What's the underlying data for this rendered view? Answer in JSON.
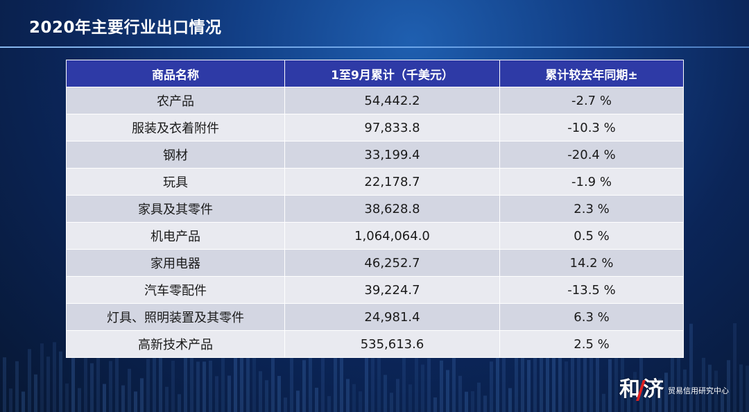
{
  "title": "2020年主要行业出口情况",
  "table": {
    "headers": [
      "商品名称",
      "1至9月累计（千美元）",
      "累计较去年同期±"
    ],
    "rows": [
      [
        "农产品",
        "54,442.2",
        "-2.7 %"
      ],
      [
        "服装及衣着附件",
        "97,833.8",
        "-10.3 %"
      ],
      [
        "钢材",
        "33,199.4",
        "-20.4 %"
      ],
      [
        "玩具",
        "22,178.7",
        "-1.9 %"
      ],
      [
        "家具及其零件",
        "38,628.8",
        "2.3 %"
      ],
      [
        "机电产品",
        "1,064,064.0",
        "0.5 %"
      ],
      [
        "家用电器",
        "46,252.7",
        "14.2 %"
      ],
      [
        "汽车零配件",
        "39,224.7",
        "-13.5 %"
      ],
      [
        "灯具、照明装置及其零件",
        "24,981.4",
        "6.3 %"
      ],
      [
        "高新技术产品",
        "535,613.6",
        "2.5 %"
      ]
    ]
  },
  "logo": {
    "mark_left": "和",
    "mark_right": "济",
    "text": "贸易信用研究中心"
  },
  "colors": {
    "header_bg": "#2e3aa6",
    "row_odd": "#d3d6e2",
    "row_even": "#e9eaf0",
    "logo_accent": "#e02020"
  }
}
